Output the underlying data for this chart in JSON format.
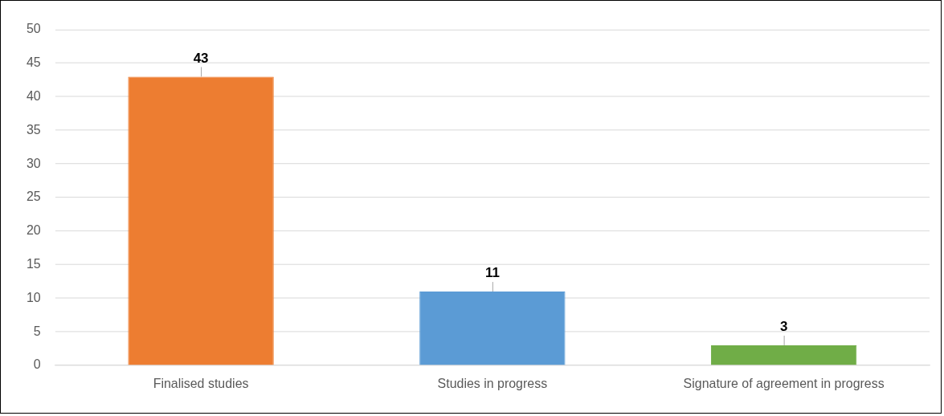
{
  "chart_data": {
    "type": "bar",
    "categories": [
      "Finalised studies",
      "Studies in progress",
      "Signature of agreement in progress"
    ],
    "values": [
      43,
      11,
      3
    ],
    "colors": [
      "#ed7d31",
      "#5b9bd5",
      "#70ad47"
    ],
    "ylim": [
      0,
      50
    ],
    "yticks": [
      0,
      5,
      10,
      15,
      20,
      25,
      30,
      35,
      40,
      45,
      50
    ],
    "grid": "y",
    "legend": false,
    "data_labels": true
  }
}
